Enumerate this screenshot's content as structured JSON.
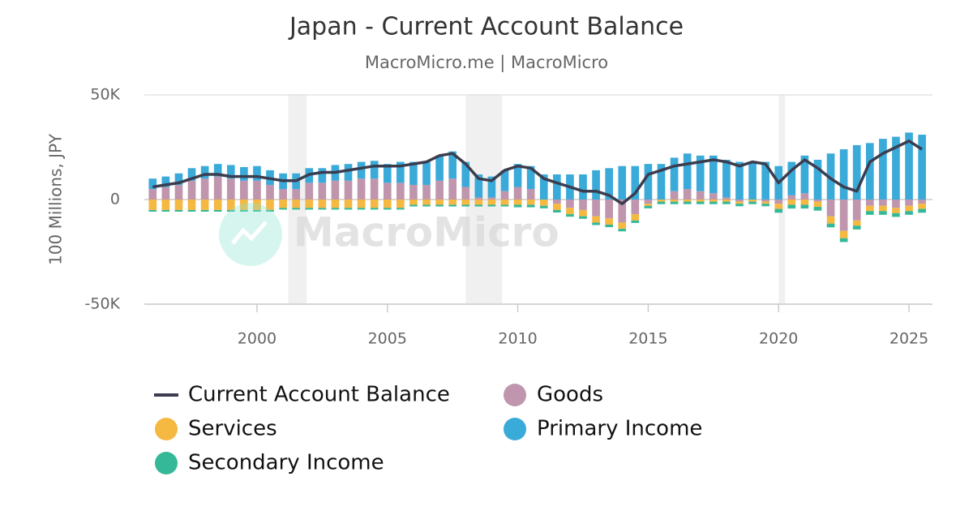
{
  "chart_data": {
    "type": "combo",
    "title": "Japan - Current Account Balance",
    "subtitle": "MacroMicro.me | MacroMicro",
    "watermark": "MacroMicro",
    "y_label": "100 Millions, JPY",
    "xlim": [
      1995.68,
      2025.9
    ],
    "xticks": [
      2000,
      2005,
      2010,
      2015,
      2020,
      2025
    ],
    "ylim": [
      -50000,
      50000
    ],
    "yticks": [
      {
        "value": -50000,
        "label": "-50K"
      },
      0,
      {
        "value": 50000,
        "label": "50K"
      }
    ],
    "grid": true,
    "shaded_periods": [
      [
        2001.2,
        2001.9
      ],
      [
        2008.0,
        2009.4
      ],
      [
        2020.0,
        2020.25
      ]
    ],
    "x": [
      1996,
      1996.5,
      1997,
      1997.5,
      1998,
      1998.5,
      1999,
      1999.5,
      2000,
      2000.5,
      2001,
      2001.5,
      2002,
      2002.5,
      2003,
      2003.5,
      2004,
      2004.5,
      2005,
      2005.5,
      2006,
      2006.5,
      2007,
      2007.5,
      2008,
      2008.5,
      2009,
      2009.5,
      2010,
      2010.5,
      2011,
      2011.5,
      2012,
      2012.5,
      2013,
      2013.5,
      2014,
      2014.5,
      2015,
      2015.5,
      2016,
      2016.5,
      2017,
      2017.5,
      2018,
      2018.5,
      2019,
      2019.5,
      2020,
      2020.5,
      2021,
      2021.5,
      2022,
      2022.5,
      2023,
      2023.5,
      2024,
      2024.5,
      2025,
      2025.5
    ],
    "series": [
      {
        "name": "Current Account Balance",
        "type": "line",
        "color": "#3b3d4f",
        "values": [
          6000,
          7000,
          8000,
          10000,
          12000,
          12000,
          11000,
          11000,
          11000,
          10000,
          9000,
          9000,
          12000,
          13000,
          13000,
          14000,
          15000,
          16000,
          16000,
          16000,
          17000,
          18000,
          21000,
          22000,
          17000,
          10000,
          9000,
          14000,
          16000,
          15000,
          10000,
          8000,
          6000,
          4000,
          4000,
          2000,
          -2000,
          3000,
          12000,
          14000,
          16000,
          17000,
          18000,
          19000,
          18000,
          16000,
          18000,
          17000,
          8000,
          14000,
          19000,
          15000,
          10000,
          6000,
          4000,
          18000,
          22000,
          25000,
          28000,
          24000
        ]
      },
      {
        "name": "Goods",
        "type": "bar",
        "color": "#bf96ad",
        "values": [
          5000,
          6000,
          7000,
          9000,
          10000,
          11000,
          10000,
          9000,
          9000,
          7000,
          5000,
          5000,
          8000,
          8000,
          9000,
          9000,
          10000,
          10000,
          8000,
          8000,
          7000,
          7000,
          9000,
          10000,
          6000,
          1000,
          1000,
          4000,
          6000,
          5000,
          0,
          -2000,
          -4000,
          -5000,
          -8000,
          -9000,
          -11000,
          -7000,
          -2000,
          0,
          4000,
          5000,
          4000,
          3000,
          1000,
          -1000,
          0,
          -1000,
          -2000,
          2000,
          3000,
          -1000,
          -8000,
          -15000,
          -10000,
          -3000,
          -3000,
          -4000,
          -3000,
          -2000
        ]
      },
      {
        "name": "Services",
        "type": "bar",
        "color": "#f5b840",
        "values": [
          -5000,
          -5000,
          -5000,
          -5000,
          -5000,
          -5000,
          -5000,
          -5000,
          -5000,
          -5000,
          -4000,
          -4000,
          -4000,
          -4000,
          -4000,
          -4000,
          -4000,
          -4000,
          -4000,
          -4000,
          -2500,
          -2500,
          -2500,
          -2500,
          -2500,
          -2500,
          -2500,
          -2500,
          -2500,
          -2500,
          -3000,
          -3000,
          -3000,
          -3000,
          -3000,
          -3000,
          -3000,
          -3000,
          -1000,
          -1000,
          -1000,
          -1000,
          -1000,
          -1000,
          -1000,
          -1000,
          -1000,
          -1000,
          -2500,
          -2500,
          -2500,
          -2500,
          -3500,
          -3500,
          -2500,
          -2500,
          -2500,
          -2500,
          -2500,
          -2500
        ]
      },
      {
        "name": "Primary Income",
        "type": "bar",
        "color": "#3aaad9",
        "values": [
          5000,
          5000,
          5500,
          6000,
          6000,
          6000,
          6500,
          6500,
          7000,
          7000,
          7500,
          7500,
          7000,
          7000,
          7500,
          8000,
          8000,
          8500,
          9000,
          10000,
          11000,
          11000,
          12000,
          13000,
          12000,
          11000,
          10000,
          10000,
          11000,
          11000,
          12000,
          12000,
          12000,
          12000,
          14000,
          15000,
          16000,
          16000,
          17000,
          17000,
          16000,
          17000,
          17000,
          18000,
          18000,
          18000,
          18000,
          18000,
          16000,
          16000,
          18000,
          19000,
          22000,
          24000,
          26000,
          27000,
          29000,
          30000,
          32000,
          31000
        ]
      },
      {
        "name": "Secondary Income",
        "type": "bar",
        "color": "#35b897",
        "values": [
          -800,
          -800,
          -800,
          -800,
          -800,
          -800,
          -800,
          -800,
          -800,
          -800,
          -800,
          -800,
          -800,
          -800,
          -800,
          -800,
          -800,
          -800,
          -800,
          -800,
          -800,
          -800,
          -800,
          -800,
          -800,
          -800,
          -800,
          -800,
          -1200,
          -1200,
          -1200,
          -1200,
          -1200,
          -1200,
          -1200,
          -1200,
          -1200,
          -1200,
          -1200,
          -1200,
          -1200,
          -1200,
          -1200,
          -1200,
          -1200,
          -1200,
          -1200,
          -1200,
          -1800,
          -1800,
          -1800,
          -1800,
          -1800,
          -1800,
          -1800,
          -1800,
          -1800,
          -1800,
          -1800,
          -1800
        ]
      }
    ]
  }
}
